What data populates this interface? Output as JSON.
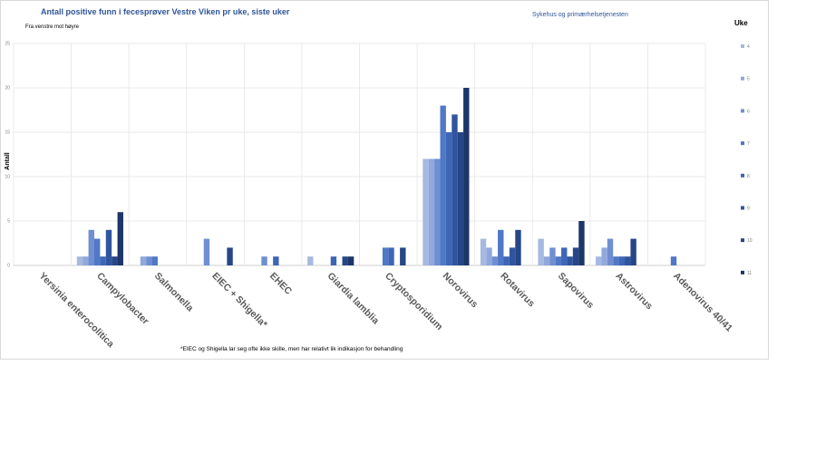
{
  "chart_data": {
    "type": "bar",
    "title": "Antall positive funn i fecesprøver Vestre Viken pr uke, siste uker",
    "subtitle": "Fra venstre mot høyre",
    "organization": "Sykehus og primærhelsetjenesten",
    "ylabel": "Antall",
    "xlabel": "",
    "ylim": [
      0,
      25
    ],
    "yticks": [
      0,
      5,
      10,
      15,
      20,
      25
    ],
    "grid": true,
    "legend_title": "Uke",
    "legend_position": "right",
    "categories": [
      "Yersinia enterocolitica",
      "Campylobacter",
      "Salmonella",
      "EIEC + Shigella*",
      "EHEC",
      "Giardia lamblia",
      "Cryptosporidium",
      "Norovirus",
      "Rotavirus",
      "Sapovirus",
      "Astrovirus",
      "Adenovirus 40/41"
    ],
    "series": [
      {
        "name": "4",
        "color": "#a6b9e0",
        "values": [
          0,
          1,
          0,
          0,
          0,
          1,
          0,
          12,
          3,
          3,
          1,
          0
        ]
      },
      {
        "name": "5",
        "color": "#90a8db",
        "values": [
          0,
          1,
          1,
          0,
          0,
          0,
          0,
          12,
          2,
          1,
          2,
          0
        ]
      },
      {
        "name": "6",
        "color": "#6f8fd1",
        "values": [
          0,
          4,
          1,
          3,
          1,
          0,
          0,
          12,
          1,
          2,
          3,
          0
        ]
      },
      {
        "name": "7",
        "color": "#4f78c6",
        "values": [
          0,
          3,
          1,
          0,
          0,
          0,
          2,
          18,
          4,
          1,
          1,
          1
        ]
      },
      {
        "name": "8",
        "color": "#3d66b6",
        "values": [
          0,
          1,
          0,
          0,
          1,
          1,
          2,
          15,
          1,
          2,
          1,
          0
        ]
      },
      {
        "name": "9",
        "color": "#30559f",
        "values": [
          0,
          4,
          0,
          0,
          0,
          0,
          0,
          17,
          2,
          1,
          1,
          0
        ]
      },
      {
        "name": "10",
        "color": "#264687",
        "values": [
          0,
          1,
          0,
          2,
          0,
          1,
          2,
          15,
          4,
          2,
          3,
          0
        ]
      },
      {
        "name": "11",
        "color": "#1c3669",
        "values": [
          0,
          6,
          0,
          0,
          0,
          1,
          0,
          20,
          0,
          5,
          0,
          0
        ]
      }
    ],
    "annotation": "*EIEC og Shigella lar seg ofte ikke skille, men har relativt lik indikasjon for behandling"
  }
}
